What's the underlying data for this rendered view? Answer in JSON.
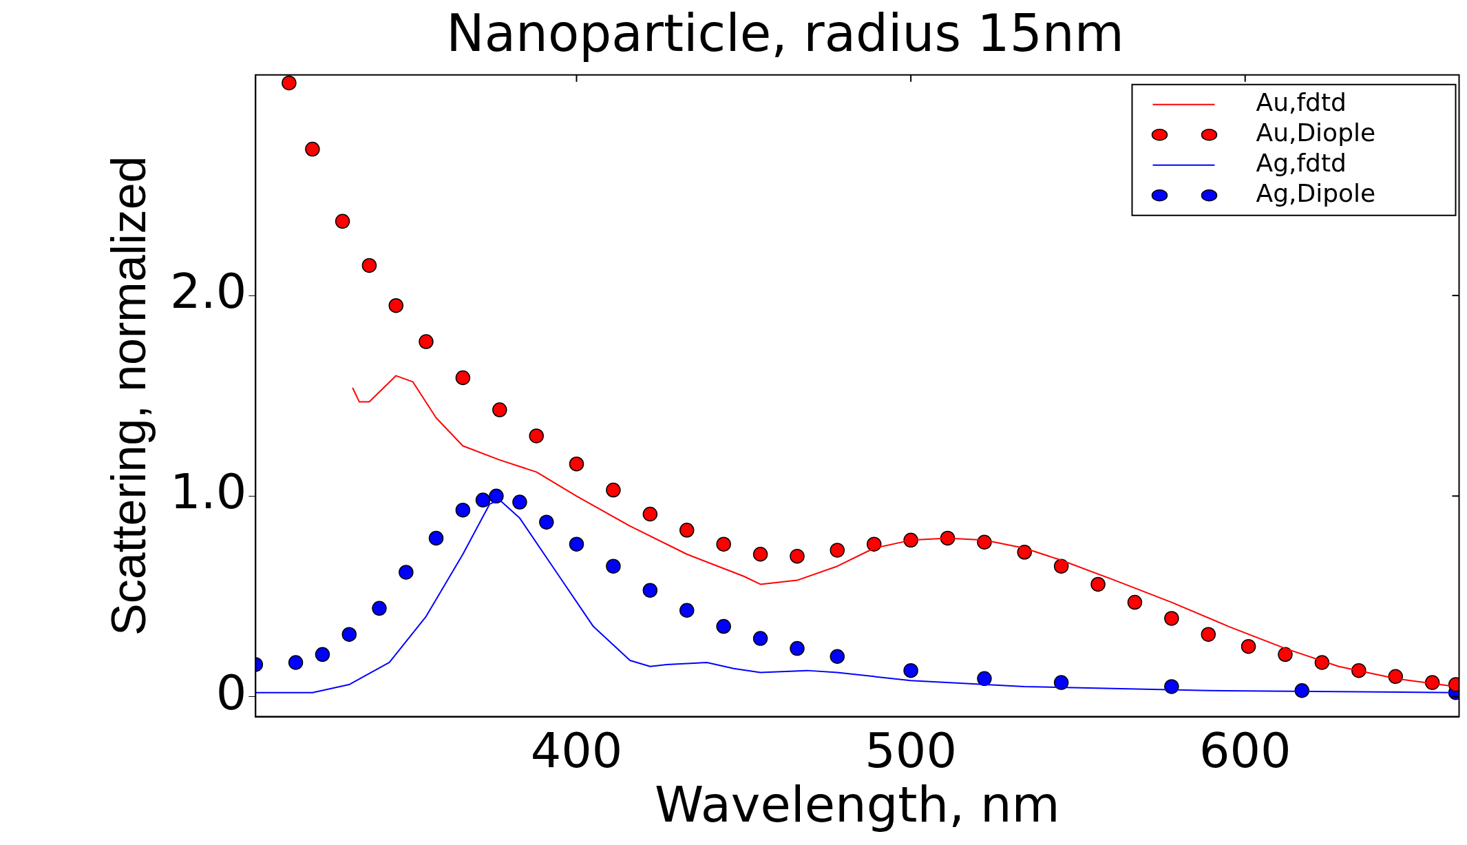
{
  "chart_data": {
    "type": "line",
    "title": "Nanoparticle, radius 15nm",
    "xlabel": "Wavelength, nm",
    "ylabel": "Scattering, normalized",
    "xlim": [
      304,
      664
    ],
    "xticks": [
      400,
      500,
      600
    ],
    "ylim": [
      -0.1,
      3.1
    ],
    "yticks": [
      {
        "value": 0,
        "label": "0"
      },
      {
        "value": 1,
        "label": "1.0"
      },
      {
        "value": 2,
        "label": "2.0"
      }
    ],
    "grid": false,
    "legend": "top right",
    "line_style": "solid",
    "series": [
      {
        "name": "Au,fdtd",
        "type": "line",
        "marker": "none",
        "color": "#ff0000",
        "x": [
          333,
          335,
          338,
          346,
          351,
          358,
          366,
          377,
          388,
          400,
          416,
          433,
          450,
          455,
          466,
          478,
          489,
          500,
          511,
          522,
          534,
          545,
          561,
          578,
          595,
          612,
          628,
          645,
          663
        ],
        "values": [
          1.54,
          1.47,
          1.47,
          1.6,
          1.57,
          1.39,
          1.25,
          1.18,
          1.12,
          1.0,
          0.85,
          0.71,
          0.6,
          0.56,
          0.58,
          0.65,
          0.74,
          0.78,
          0.79,
          0.78,
          0.74,
          0.68,
          0.58,
          0.47,
          0.35,
          0.24,
          0.15,
          0.09,
          0.05
        ]
      },
      {
        "name": "Au,Diople",
        "type": "scatter",
        "marker": "circle",
        "color": "#ff0000",
        "x": [
          314,
          321,
          330,
          338,
          346,
          355,
          366,
          377,
          388,
          400,
          411,
          422,
          433,
          444,
          455,
          466,
          478,
          489,
          500,
          511,
          522,
          534,
          545,
          556,
          567,
          578,
          589,
          601,
          612,
          623,
          634,
          645,
          656,
          663
        ],
        "values": [
          3.06,
          2.73,
          2.37,
          2.15,
          1.95,
          1.77,
          1.59,
          1.43,
          1.3,
          1.16,
          1.03,
          0.91,
          0.83,
          0.76,
          0.71,
          0.7,
          0.73,
          0.76,
          0.78,
          0.79,
          0.77,
          0.72,
          0.65,
          0.56,
          0.47,
          0.39,
          0.31,
          0.25,
          0.21,
          0.17,
          0.13,
          0.1,
          0.07,
          0.06
        ]
      },
      {
        "name": "Ag,fdtd",
        "type": "line",
        "marker": "none",
        "color": "#0000ff",
        "x": [
          304,
          321,
          332,
          344,
          355,
          366,
          374,
          377,
          383,
          394,
          405,
          416,
          422,
          427,
          439,
          447,
          455,
          469,
          478,
          500,
          534,
          589,
          663
        ],
        "values": [
          0.02,
          0.02,
          0.06,
          0.17,
          0.4,
          0.71,
          0.96,
          0.98,
          0.89,
          0.62,
          0.35,
          0.18,
          0.15,
          0.16,
          0.17,
          0.14,
          0.12,
          0.13,
          0.12,
          0.08,
          0.05,
          0.03,
          0.02
        ]
      },
      {
        "name": "Ag,Dipole",
        "type": "scatter",
        "marker": "circle",
        "color": "#0000ff",
        "x": [
          304,
          316,
          324,
          332,
          341,
          349,
          358,
          366,
          372,
          376,
          383,
          391,
          400,
          411,
          422,
          433,
          444,
          455,
          466,
          478,
          500,
          522,
          545,
          578,
          617,
          663
        ],
        "values": [
          0.16,
          0.17,
          0.21,
          0.31,
          0.44,
          0.62,
          0.79,
          0.93,
          0.98,
          1.0,
          0.97,
          0.87,
          0.76,
          0.65,
          0.53,
          0.43,
          0.35,
          0.29,
          0.24,
          0.2,
          0.13,
          0.09,
          0.07,
          0.05,
          0.03,
          0.02
        ]
      }
    ]
  }
}
